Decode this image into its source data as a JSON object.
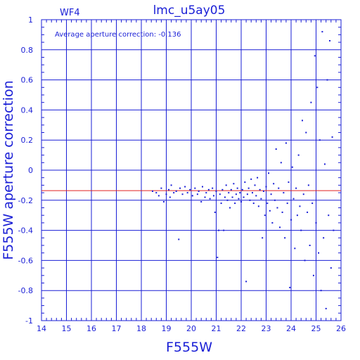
{
  "chart_data": {
    "type": "scatter",
    "title": "lmc_u5ay05",
    "panel_label": "WF4",
    "annotation": "Average aperture correction: -0.136",
    "xlabel": "F555W",
    "ylabel": "F555W aperture correction",
    "xlim": [
      14,
      26
    ],
    "ylim": [
      -1,
      1
    ],
    "x_ticks": [
      "14",
      "15",
      "16",
      "17",
      "18",
      "19",
      "20",
      "21",
      "22",
      "23",
      "24",
      "25",
      "26"
    ],
    "y_ticks": [
      "-1",
      "-0.8",
      "-0.6",
      "-0.4",
      "-0.2",
      "0",
      "0.2",
      "0.4",
      "0.6",
      "0.8",
      "1"
    ],
    "grid": true,
    "reference_lines": [
      {
        "y": -0.136,
        "color": "#e02020"
      }
    ],
    "colors": {
      "axis": "#1a1fd6",
      "points": "#1a1fd6",
      "reference": "#e02020"
    },
    "series": [
      {
        "points": [
          [
            18.45,
            -0.14
          ],
          [
            18.6,
            -0.15
          ],
          [
            18.7,
            -0.17
          ],
          [
            18.8,
            -0.12
          ],
          [
            18.9,
            -0.21
          ],
          [
            19.0,
            -0.16
          ],
          [
            19.1,
            -0.13
          ],
          [
            19.15,
            -0.18
          ],
          [
            19.2,
            -0.1
          ],
          [
            19.3,
            -0.15
          ],
          [
            19.4,
            -0.14
          ],
          [
            19.5,
            -0.46
          ],
          [
            19.55,
            -0.12
          ],
          [
            19.65,
            -0.16
          ],
          [
            19.75,
            -0.11
          ],
          [
            19.85,
            -0.15
          ],
          [
            19.95,
            -0.13
          ],
          [
            20.05,
            -0.17
          ],
          [
            20.15,
            -0.12
          ],
          [
            20.25,
            -0.16
          ],
          [
            20.3,
            -0.14
          ],
          [
            20.4,
            -0.21
          ],
          [
            20.45,
            -0.11
          ],
          [
            20.55,
            -0.18
          ],
          [
            20.6,
            -0.15
          ],
          [
            20.7,
            -0.13
          ],
          [
            20.75,
            -0.19
          ],
          [
            20.85,
            -0.12
          ],
          [
            20.9,
            -0.17
          ],
          [
            20.95,
            -0.28
          ],
          [
            21.0,
            -0.14
          ],
          [
            21.05,
            -0.58
          ],
          [
            21.1,
            -0.4
          ],
          [
            21.15,
            -0.16
          ],
          [
            21.2,
            -0.22
          ],
          [
            21.25,
            -0.13
          ],
          [
            21.3,
            -0.4
          ],
          [
            21.35,
            -0.18
          ],
          [
            21.4,
            -0.1
          ],
          [
            21.45,
            -0.2
          ],
          [
            21.5,
            -0.15
          ],
          [
            21.55,
            -0.25
          ],
          [
            21.6,
            -0.13
          ],
          [
            21.65,
            -0.18
          ],
          [
            21.7,
            -0.09
          ],
          [
            21.75,
            -0.22
          ],
          [
            21.8,
            -0.16
          ],
          [
            21.85,
            -0.12
          ],
          [
            21.9,
            -0.19
          ],
          [
            21.95,
            -0.15
          ],
          [
            22.0,
            -0.21
          ],
          [
            22.05,
            -0.13
          ],
          [
            22.1,
            -0.18
          ],
          [
            22.15,
            -0.08
          ],
          [
            22.2,
            -0.74
          ],
          [
            22.25,
            -0.16
          ],
          [
            22.3,
            -0.12
          ],
          [
            22.35,
            -0.2
          ],
          [
            22.4,
            -0.06
          ],
          [
            22.45,
            -0.15
          ],
          [
            22.5,
            -0.22
          ],
          [
            22.55,
            -0.1
          ],
          [
            22.6,
            -0.17
          ],
          [
            22.65,
            -0.05
          ],
          [
            22.7,
            -0.24
          ],
          [
            22.75,
            -0.13
          ],
          [
            22.8,
            -0.19
          ],
          [
            22.85,
            -0.45
          ],
          [
            22.9,
            -0.14
          ],
          [
            22.95,
            -0.3
          ],
          [
            23.0,
            -0.11
          ],
          [
            23.05,
            -0.22
          ],
          [
            23.1,
            -0.02
          ],
          [
            23.15,
            -0.27
          ],
          [
            23.2,
            -0.16
          ],
          [
            23.25,
            -0.35
          ],
          [
            23.3,
            -0.09
          ],
          [
            23.35,
            -0.2
          ],
          [
            23.4,
            0.14
          ],
          [
            23.45,
            -0.25
          ],
          [
            23.5,
            -0.12
          ],
          [
            23.55,
            -0.38
          ],
          [
            23.6,
            0.05
          ],
          [
            23.65,
            -0.28
          ],
          [
            23.7,
            -0.15
          ],
          [
            23.75,
            -0.45
          ],
          [
            23.8,
            0.18
          ],
          [
            23.85,
            -0.22
          ],
          [
            23.9,
            -0.08
          ],
          [
            23.95,
            -0.78
          ],
          [
            24.0,
            -0.33
          ],
          [
            24.05,
            0.02
          ],
          [
            24.1,
            -0.19
          ],
          [
            24.15,
            -0.52
          ],
          [
            24.2,
            -0.12
          ],
          [
            24.25,
            -0.3
          ],
          [
            24.3,
            0.1
          ],
          [
            24.35,
            -0.24
          ],
          [
            24.4,
            -0.4
          ],
          [
            24.45,
            0.33
          ],
          [
            24.5,
            -0.16
          ],
          [
            24.55,
            -0.6
          ],
          [
            24.6,
            0.25
          ],
          [
            24.65,
            -0.28
          ],
          [
            24.7,
            -0.1
          ],
          [
            24.75,
            -0.5
          ],
          [
            24.8,
            0.45
          ],
          [
            24.85,
            -0.22
          ],
          [
            24.9,
            -0.7
          ],
          [
            24.95,
            0.76
          ],
          [
            25.0,
            -0.35
          ],
          [
            25.05,
            0.55
          ],
          [
            25.1,
            -0.55
          ],
          [
            25.15,
            0.2
          ],
          [
            25.2,
            -0.8
          ],
          [
            25.25,
            0.92
          ],
          [
            25.3,
            -0.45
          ],
          [
            25.35,
            0.04
          ],
          [
            25.4,
            -0.92
          ],
          [
            25.45,
            0.6
          ],
          [
            25.5,
            -0.3
          ],
          [
            25.55,
            0.86
          ],
          [
            25.6,
            -0.65
          ],
          [
            25.65,
            0.22
          ],
          [
            25.7,
            -0.4
          ]
        ]
      }
    ]
  }
}
